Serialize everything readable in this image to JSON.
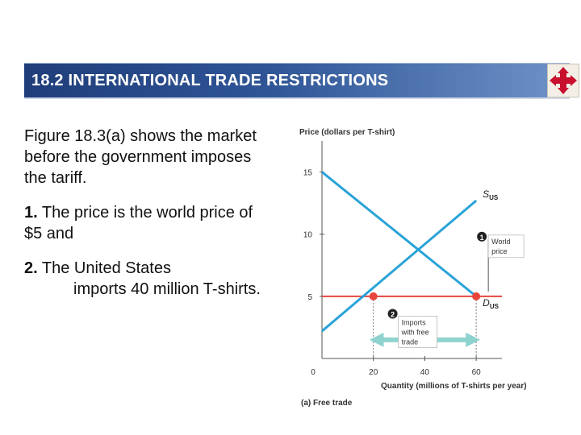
{
  "header": {
    "title": "18.2  INTERNATIONAL TRADE RESTRICTIONS",
    "nav_icon": "four-arrows-navigation-icon"
  },
  "body": {
    "para1": "Figure 18.3(a) shows the market before the government imposes the tariff.",
    "item1_num": "1.",
    "item1_text": " The price is the  world price of $5 and",
    "item2_num": "2.",
    "item2_line1": " The United States",
    "item2_rest": "imports 40 million T-shirts."
  },
  "chart_data": {
    "type": "line",
    "ylabel": "Price (dollars per T-shirt)",
    "xlabel": "Quantity (millions of T-shirts per year)",
    "caption": "(a) Free trade",
    "origin_label": "0",
    "xticks": [
      20,
      40,
      60
    ],
    "yticks": [
      5,
      10,
      15
    ],
    "xlim": [
      0,
      70
    ],
    "ylim": [
      0,
      17.5
    ],
    "series": [
      {
        "name": "S",
        "subscript": "US",
        "x": [
          0,
          60
        ],
        "y": [
          2.2,
          12.7
        ],
        "color": "#29a3d8"
      },
      {
        "name": "D",
        "subscript": "US",
        "x": [
          0,
          60
        ],
        "y": [
          15,
          5
        ],
        "color": "#29a3d8"
      }
    ],
    "world_price": {
      "value": 5,
      "color": "#e8453c"
    },
    "points": [
      {
        "x": 20,
        "y": 5,
        "color": "#e8453c"
      },
      {
        "x": 60,
        "y": 5,
        "color": "#e8453c"
      }
    ],
    "imports_range": [
      20,
      60
    ],
    "annotations": [
      {
        "marker": "1",
        "lines": [
          "World",
          "price"
        ]
      },
      {
        "marker": "2",
        "lines": [
          "Imports",
          "with free",
          "trade"
        ]
      }
    ],
    "axis_color": "#555555",
    "accent_arrow_color": "#8fd3cf",
    "marker_color": "#222222"
  }
}
